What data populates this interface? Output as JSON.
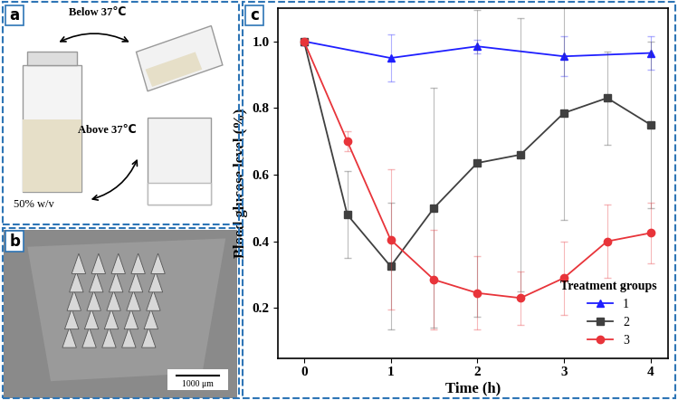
{
  "panel_a": {
    "label": "a",
    "below_text": "Below 37℃",
    "above_text": "Above 37℃",
    "concentration": "50% w/v"
  },
  "panel_b": {
    "label": "b",
    "scale_bar": "1000 μm"
  },
  "chart_data": {
    "type": "line",
    "panel_label": "c",
    "x_label": "Time (h)",
    "y_label": "Blood glucose level (%)",
    "legend_title": "Treatment groups",
    "legend": "lower right",
    "xlim": [
      -0.3,
      4.2
    ],
    "xticks": [
      0,
      1,
      2,
      3,
      4
    ],
    "ylim": [
      0.05,
      1.1
    ],
    "yticks": [
      0.2,
      0.4,
      0.6,
      0.8,
      1.0
    ],
    "series": [
      {
        "name": "1",
        "color": "#1f1fff",
        "marker": "triangle",
        "x": [
          0,
          1,
          2,
          3,
          4
        ],
        "values": [
          1.0,
          0.95,
          0.985,
          0.955,
          0.965
        ],
        "errors": [
          0.0,
          0.07,
          0.02,
          0.06,
          0.05
        ]
      },
      {
        "name": "2",
        "color": "#404040",
        "marker": "square",
        "x": [
          0,
          0.5,
          1,
          1.5,
          2,
          2.5,
          3,
          3.5,
          4
        ],
        "values": [
          1.0,
          0.48,
          0.325,
          0.5,
          0.635,
          0.66,
          0.785,
          0.83,
          0.75
        ],
        "errors": [
          0.0,
          0.13,
          0.19,
          0.36,
          0.46,
          0.41,
          0.32,
          0.14,
          0.25
        ]
      },
      {
        "name": "3",
        "color": "#e8343a",
        "marker": "circle",
        "x": [
          0,
          0.5,
          1,
          1.5,
          2,
          2.5,
          3,
          3.5,
          4
        ],
        "values": [
          1.0,
          0.7,
          0.405,
          0.285,
          0.245,
          0.23,
          0.29,
          0.4,
          0.425
        ],
        "errors": [
          0.0,
          0.03,
          0.21,
          0.15,
          0.11,
          0.08,
          0.11,
          0.11,
          0.09
        ]
      }
    ]
  }
}
